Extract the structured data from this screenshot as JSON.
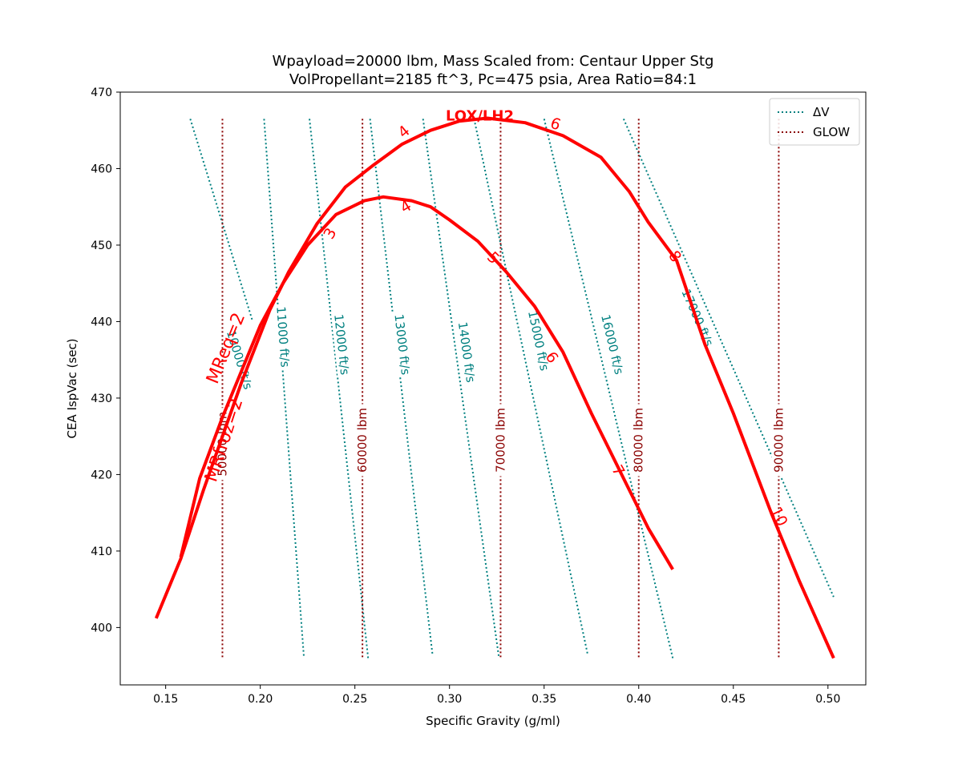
{
  "chart_data": {
    "type": "line",
    "title": "Wpayload=20000 lbm, Mass Scaled from: Centaur Upper Stg",
    "subtitle": "VolPropellant=2185 ft^3, Pc=475 psia, Area Ratio=84:1",
    "xlabel": "Specific Gravity (g/ml)",
    "ylabel": "CEA IspVac (sec)",
    "xlim": [
      0.126,
      0.52
    ],
    "ylim": [
      392.5,
      470
    ],
    "xticks": [
      0.15,
      0.2,
      0.25,
      0.3,
      0.35,
      0.4,
      0.45,
      0.5
    ],
    "xtick_labels": [
      "0.15",
      "0.20",
      "0.25",
      "0.30",
      "0.35",
      "0.40",
      "0.45",
      "0.50"
    ],
    "yticks": [
      400,
      410,
      420,
      430,
      440,
      450,
      460,
      470
    ],
    "ytick_labels": [
      "400",
      "410",
      "420",
      "430",
      "440",
      "450",
      "460",
      "470"
    ],
    "propellant_label": "LOX/LH2",
    "legend": {
      "position": "top-right",
      "entries": [
        {
          "label": "ΔV",
          "color": "#008080",
          "style": "dotted"
        },
        {
          "label": "GLOW",
          "color": "#8b0000",
          "style": "dotted"
        }
      ]
    },
    "series": [
      {
        "color": "#ff0000",
        "points": [
          [
            0.145,
            401.2
          ],
          [
            0.158,
            409
          ],
          [
            0.17,
            418
          ],
          [
            0.18,
            425
          ],
          [
            0.19,
            432
          ],
          [
            0.205,
            441.5
          ],
          [
            0.215,
            446.5
          ],
          [
            0.23,
            452.8
          ],
          [
            0.245,
            457.6
          ],
          [
            0.26,
            460.5
          ],
          [
            0.275,
            463.2
          ],
          [
            0.29,
            465.0
          ],
          [
            0.305,
            466.2
          ],
          [
            0.32,
            466.6
          ],
          [
            0.34,
            466.0
          ],
          [
            0.36,
            464.3
          ],
          [
            0.38,
            461.5
          ],
          [
            0.395,
            457.0
          ],
          [
            0.405,
            453.0
          ],
          [
            0.42,
            448.0
          ],
          [
            0.435,
            437.0
          ],
          [
            0.45,
            428.0
          ],
          [
            0.47,
            415.0
          ],
          [
            0.485,
            406.0
          ],
          [
            0.503,
            396.0
          ]
        ]
      },
      {
        "color": "#ff0000",
        "points": [
          [
            0.158,
            409.2
          ],
          [
            0.168,
            419.5
          ],
          [
            0.18,
            427.5
          ],
          [
            0.19,
            433.5
          ],
          [
            0.2,
            439.5
          ],
          [
            0.212,
            445.0
          ],
          [
            0.225,
            450.0
          ],
          [
            0.24,
            454.0
          ],
          [
            0.255,
            455.8
          ],
          [
            0.265,
            456.3
          ],
          [
            0.28,
            455.8
          ],
          [
            0.29,
            455.0
          ],
          [
            0.3,
            453.3
          ],
          [
            0.315,
            450.5
          ],
          [
            0.33,
            446.5
          ],
          [
            0.345,
            442.0
          ],
          [
            0.36,
            436.0
          ],
          [
            0.375,
            428.0
          ],
          [
            0.39,
            420.5
          ],
          [
            0.405,
            413.0
          ],
          [
            0.418,
            407.6
          ]
        ]
      }
    ],
    "mixture_ratio_labels": [
      {
        "text": "MReq=2",
        "x": 0.182,
        "y": 436.5,
        "rotation": -68
      },
      {
        "text": "MRfroz=2",
        "x": 0.181,
        "y": 424.5,
        "rotation": -72
      }
    ],
    "mixture_ratio_ticks": [
      {
        "text": "3",
        "x": 0.237,
        "y": 451.5,
        "rotation": -60
      },
      {
        "text": "4",
        "x": 0.276,
        "y": 464.8,
        "rotation": -40
      },
      {
        "text": "6",
        "x": 0.356,
        "y": 465.8,
        "rotation": 20
      },
      {
        "text": "8",
        "x": 0.419,
        "y": 448.5,
        "rotation": 55
      },
      {
        "text": "10",
        "x": 0.474,
        "y": 414.5,
        "rotation": 65
      },
      {
        "text": "4",
        "x": 0.277,
        "y": 455.0,
        "rotation": -30
      },
      {
        "text": "5",
        "x": 0.323,
        "y": 448.3,
        "rotation": 45
      },
      {
        "text": "6",
        "x": 0.354,
        "y": 435.3,
        "rotation": 55
      },
      {
        "text": "7",
        "x": 0.389,
        "y": 420.5,
        "rotation": 60
      }
    ],
    "delta_v_contours": [
      {
        "label": "10000 ft/s",
        "x": [
          0.163,
          0.196
        ],
        "y": [
          466.5,
          440.0
        ],
        "label_x": 0.189,
        "label_y": 435.0
      },
      {
        "label": "11000 ft/s",
        "x": [
          0.202,
          0.223
        ],
        "y": [
          466.5,
          396.3
        ],
        "label_x": 0.212,
        "label_y": 438.0
      },
      {
        "label": "12000 ft/s",
        "x": [
          0.226,
          0.257
        ],
        "y": [
          466.5,
          396.0
        ],
        "label_x": 0.243,
        "label_y": 437.0
      },
      {
        "label": "13000 ft/s",
        "x": [
          0.258,
          0.291
        ],
        "y": [
          466.5,
          396.5
        ],
        "label_x": 0.275,
        "label_y": 437.0
      },
      {
        "label": "14000 ft/s",
        "x": [
          0.286,
          0.326
        ],
        "y": [
          466.5,
          396.3
        ],
        "label_x": 0.309,
        "label_y": 436.0
      },
      {
        "label": "15000 ft/s",
        "x": [
          0.313,
          0.373
        ],
        "y": [
          466.5,
          396.5
        ],
        "label_x": 0.347,
        "label_y": 437.5
      },
      {
        "label": "16000 ft/s",
        "x": [
          0.35,
          0.418
        ],
        "y": [
          466.5,
          396.0
        ],
        "label_x": 0.386,
        "label_y": 437.0
      },
      {
        "label": "17000 ft/s",
        "x": [
          0.392,
          0.503
        ],
        "y": [
          466.5,
          404.0
        ],
        "label_x": 0.431,
        "label_y": 440.5
      }
    ],
    "glow_contours": [
      {
        "label": "50000 lbm",
        "x": 0.18,
        "label_y": 424.0
      },
      {
        "label": "60000 lbm",
        "x": 0.254,
        "label_y": 424.5
      },
      {
        "label": "70000 lbm",
        "x": 0.327,
        "label_y": 424.5
      },
      {
        "label": "80000 lbm",
        "x": 0.4,
        "label_y": 424.5
      },
      {
        "label": "90000 lbm",
        "x": 0.474,
        "label_y": 424.5
      }
    ],
    "glow_ylim": [
      396.0,
      466.5
    ],
    "grid": false
  }
}
